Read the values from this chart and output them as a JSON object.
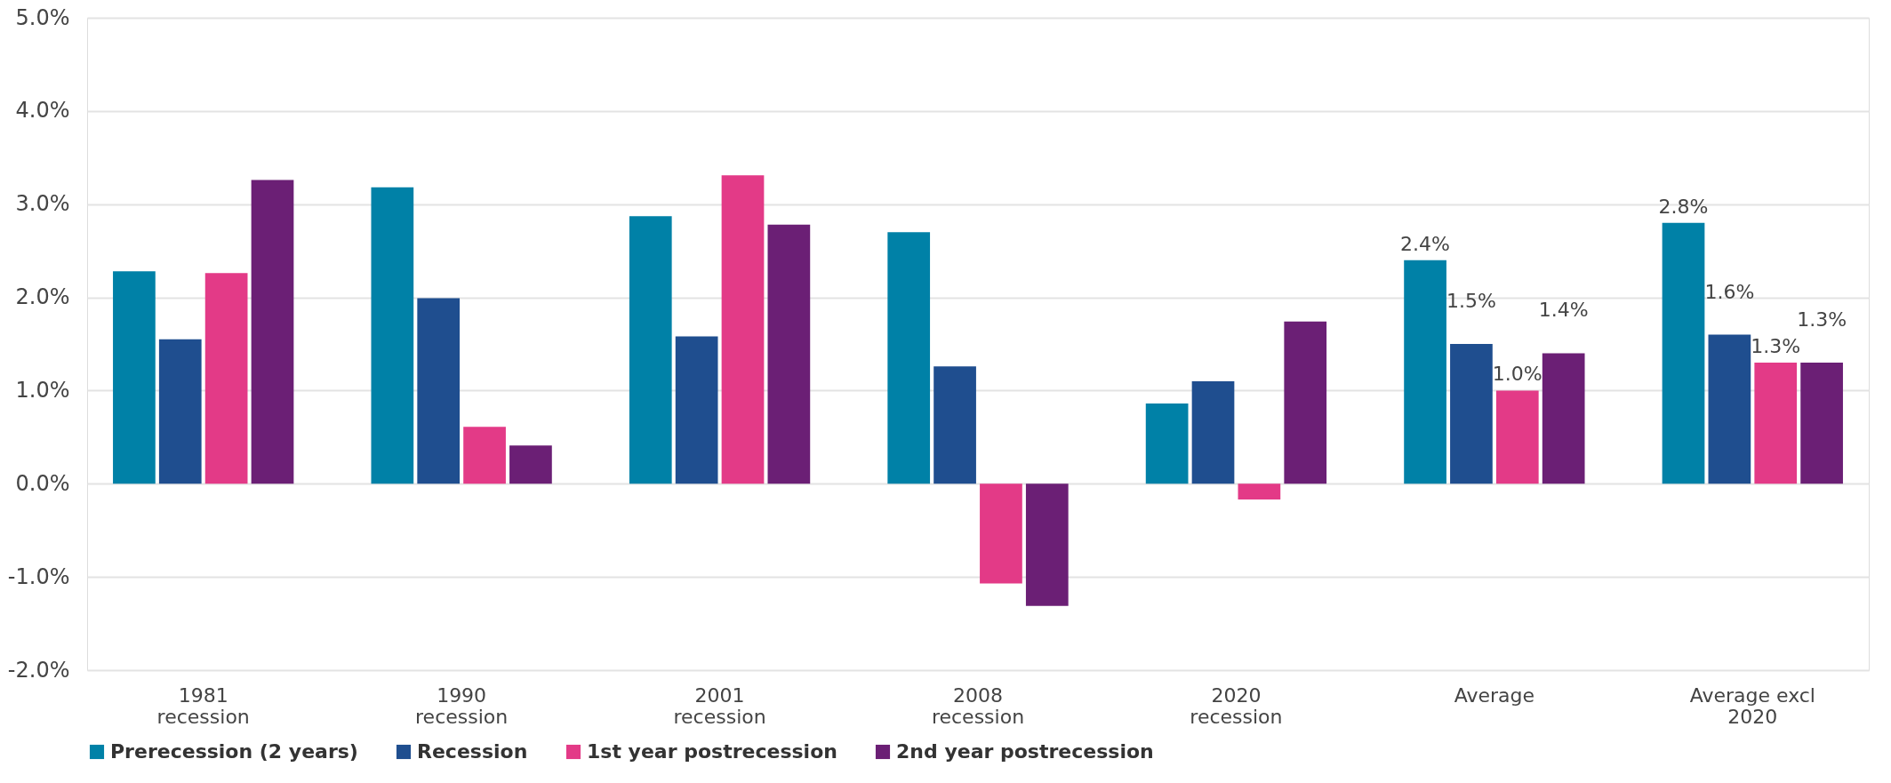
{
  "chart_data": {
    "type": "bar",
    "categories": [
      "1981\nrecession",
      "1990\nrecession",
      "2001\nrecession",
      "2008\nrecession",
      "2020\nrecession",
      "Average",
      "Average excl\n2020"
    ],
    "series": [
      {
        "name": "Prerecession (2 years)",
        "color": "#0081a7",
        "values": [
          2.28,
          3.18,
          2.87,
          2.7,
          0.86,
          2.4,
          2.8
        ],
        "value_labels": [
          null,
          null,
          null,
          null,
          null,
          "2.4%",
          "2.8%"
        ]
      },
      {
        "name": "Recession",
        "color": "#1f4e8f",
        "values": [
          1.55,
          1.99,
          1.58,
          1.26,
          1.1,
          1.5,
          1.6
        ],
        "value_labels": [
          null,
          null,
          null,
          null,
          null,
          "1.5%",
          "1.6%"
        ]
      },
      {
        "name": "1st year postrecession",
        "color": "#e33a87",
        "values": [
          2.26,
          0.61,
          3.31,
          -1.07,
          -0.17,
          1.0,
          1.3
        ],
        "value_labels": [
          null,
          null,
          null,
          null,
          null,
          "1.0%",
          "1.3%"
        ]
      },
      {
        "name": "2nd year postrecession",
        "color": "#6b1f75",
        "values": [
          3.26,
          0.41,
          2.78,
          -1.31,
          1.74,
          1.4,
          1.3
        ],
        "value_labels": [
          null,
          null,
          null,
          null,
          null,
          "1.4%",
          "1.3%"
        ]
      }
    ],
    "ylim": [
      -2.0,
      5.0
    ],
    "yticks": [
      {
        "value": -2,
        "label": "-2.0%"
      },
      {
        "value": -1,
        "label": "-1.0%"
      },
      {
        "value": 0,
        "label": "0.0%"
      },
      {
        "value": 1,
        "label": "1.0%"
      },
      {
        "value": 2,
        "label": "2.0%"
      },
      {
        "value": 3,
        "label": "3.0%"
      },
      {
        "value": 4,
        "label": "4.0%"
      },
      {
        "value": 5,
        "label": "5.0%"
      }
    ],
    "grid": "y",
    "legend": "bottom"
  }
}
